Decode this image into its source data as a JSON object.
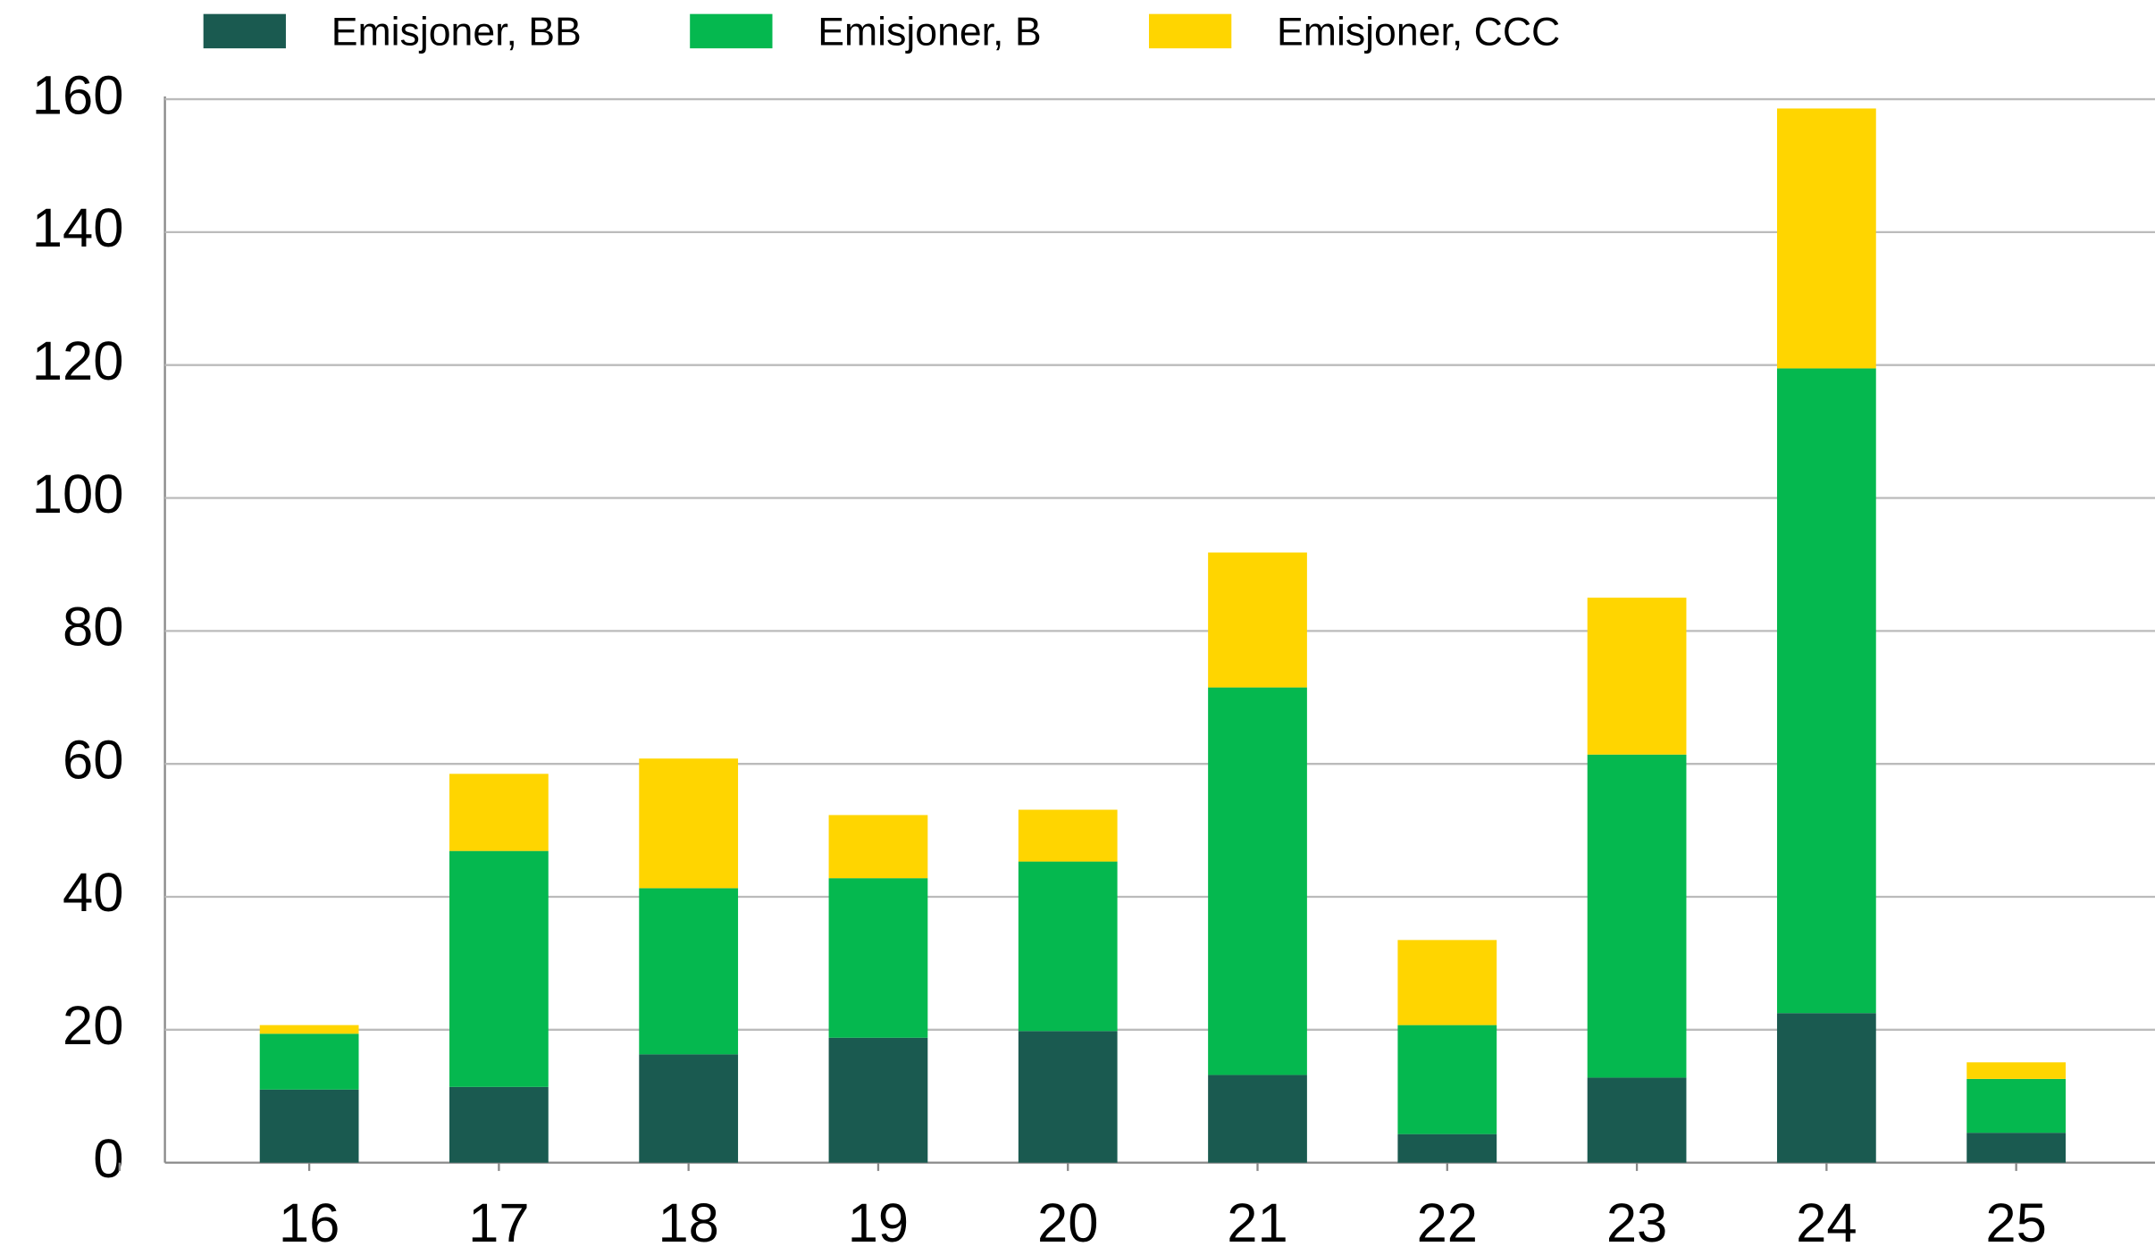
{
  "chart_data": {
    "type": "stacked_bar",
    "categories": [
      "16",
      "17",
      "18",
      "19",
      "20",
      "21",
      "22",
      "23",
      "24",
      "25"
    ],
    "series": [
      {
        "name": "Emisjoner, BB",
        "color": "#1a5a50",
        "values": [
          11.0,
          11.4,
          16.3,
          18.8,
          19.8,
          13.2,
          4.3,
          12.8,
          22.5,
          4.5
        ]
      },
      {
        "name": "Emisjoner, B",
        "color": "#05b84f",
        "values": [
          8.4,
          35.5,
          25.0,
          24.0,
          25.5,
          58.3,
          16.4,
          48.6,
          97.0,
          8.1
        ]
      },
      {
        "name": "Emisjoner, CCC",
        "color": "#ffd500",
        "values": [
          1.3,
          11.6,
          19.5,
          9.5,
          7.8,
          20.3,
          12.8,
          23.6,
          39.1,
          2.5
        ]
      }
    ],
    "ylim": [
      0,
      160
    ],
    "yticks": [
      0,
      20,
      40,
      60,
      80,
      100,
      120,
      140,
      160
    ],
    "grid": true
  }
}
